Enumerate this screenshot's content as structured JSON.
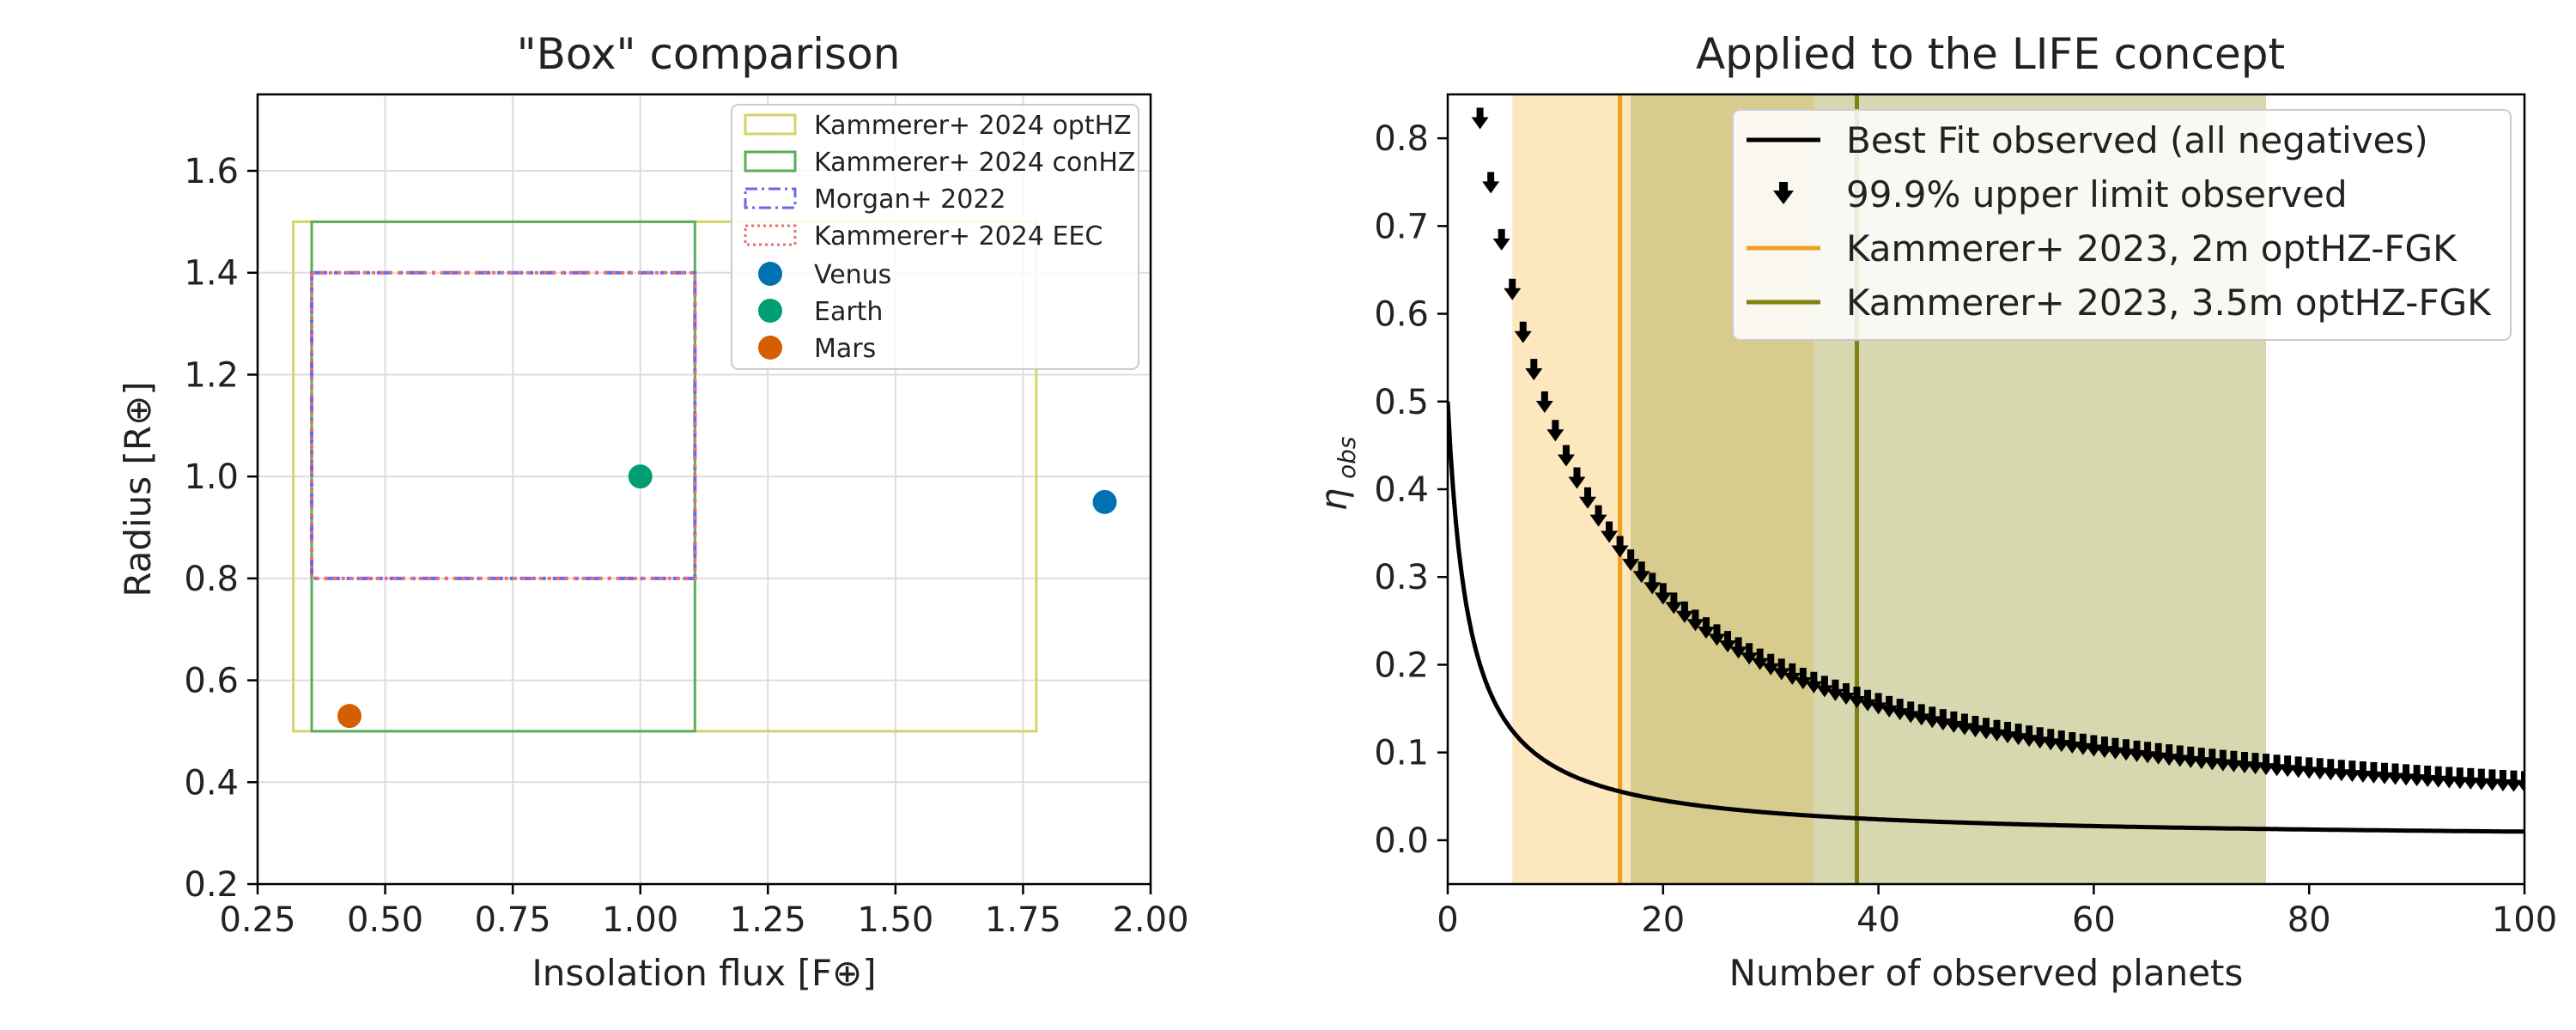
{
  "chart_data": [
    {
      "type": "scatter",
      "title": "\"Box\" comparison",
      "xlabel": "Insolation flux [F⊕]",
      "ylabel": "Radius [R⊕]",
      "xlim": [
        0.25,
        2.0
      ],
      "ylim": [
        0.2,
        1.75
      ],
      "grid": true,
      "xticks": [
        0.25,
        0.5,
        0.75,
        1.0,
        1.25,
        1.5,
        1.75,
        2.0
      ],
      "xtick_labels": [
        "0.25",
        "0.50",
        "0.75",
        "1.00",
        "1.25",
        "1.50",
        "1.75",
        "2.00"
      ],
      "yticks": [
        0.2,
        0.4,
        0.6,
        0.8,
        1.0,
        1.2,
        1.4,
        1.6
      ],
      "ytick_labels": [
        "0.2",
        "0.4",
        "0.6",
        "0.8",
        "1.0",
        "1.2",
        "1.4",
        "1.6"
      ],
      "legend_position": "top-right",
      "boxes": [
        {
          "name": "Kammerer+ 2024 optHZ",
          "x": [
            0.32,
            1.776
          ],
          "y": [
            0.5,
            1.5
          ],
          "color": "#d4d46a",
          "dash": "solid"
        },
        {
          "name": "Kammerer+ 2024 conHZ",
          "x": [
            0.356,
            1.107
          ],
          "y": [
            0.5,
            1.5
          ],
          "color": "#5aae5a",
          "dash": "solid"
        },
        {
          "name": "Morgan+ 2022",
          "x": [
            0.356,
            1.107
          ],
          "y": [
            0.8,
            1.4
          ],
          "color": "#6a6ae8",
          "dash": "dashdot"
        },
        {
          "name": "Kammerer+ 2024 EEC",
          "x": [
            0.356,
            1.107
          ],
          "y": [
            0.8,
            1.4
          ],
          "color": "#e87070",
          "dash": "dotted"
        }
      ],
      "points": [
        {
          "name": "Venus",
          "x": 1.91,
          "y": 0.95,
          "color": "#0072b2"
        },
        {
          "name": "Earth",
          "x": 1.0,
          "y": 1.0,
          "color": "#009e73"
        },
        {
          "name": "Mars",
          "x": 0.43,
          "y": 0.53,
          "color": "#d55e00"
        }
      ]
    },
    {
      "type": "line",
      "title": "Applied to the LIFE concept",
      "xlabel": "Number of observed planets",
      "ylabel": "η_obs",
      "ylabel_main": "η",
      "ylabel_sub": "obs",
      "xlim": [
        0,
        100
      ],
      "ylim": [
        -0.05,
        0.85
      ],
      "grid": false,
      "xticks": [
        0,
        20,
        40,
        60,
        80,
        100
      ],
      "xtick_labels": [
        "0",
        "20",
        "40",
        "60",
        "80",
        "100"
      ],
      "yticks": [
        0.0,
        0.1,
        0.2,
        0.3,
        0.4,
        0.5,
        0.6,
        0.7,
        0.8
      ],
      "ytick_labels": [
        "0.0",
        "0.1",
        "0.2",
        "0.3",
        "0.4",
        "0.5",
        "0.6",
        "0.7",
        "0.8"
      ],
      "legend_position": "top-right",
      "series": [
        {
          "name": "Best Fit observed (all negatives)",
          "kind": "curve",
          "formula": "1/(N+2)",
          "x_range": [
            0,
            100
          ],
          "color": "#000000"
        },
        {
          "name": "99.9% upper limit observed",
          "kind": "upper-limit-arrows",
          "formula": "1-0.001^(1/(N+1))",
          "x_range": [
            3,
            100
          ],
          "color": "#000000"
        },
        {
          "name": "Kammerer+ 2023, 2m optHZ-FGK",
          "kind": "vline",
          "x": 16,
          "band": [
            6,
            34
          ],
          "color": "#f0a020",
          "band_color": "#fde3b4"
        },
        {
          "name": "Kammerer+ 2023, 3.5m optHZ-FGK",
          "kind": "vline",
          "x": 38,
          "band": [
            17,
            76
          ],
          "color": "#808010",
          "band_color": "#a8a850"
        }
      ]
    }
  ]
}
